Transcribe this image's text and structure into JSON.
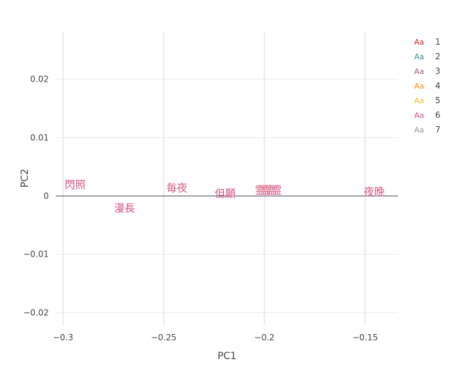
{
  "chart_data": {
    "type": "scatter",
    "xlabel": "PC1",
    "ylabel": "PC2",
    "xlim": [
      -0.3036,
      -0.1336
    ],
    "ylim": [
      -0.0221,
      0.0282
    ],
    "x_ticks": [
      -0.3,
      -0.25,
      -0.2,
      -0.15
    ],
    "x_tick_labels": [
      "−0.3",
      "−0.25",
      "−0.2",
      "−0.15"
    ],
    "y_ticks": [
      -0.02,
      -0.01,
      0,
      0.01,
      0.02
    ],
    "y_tick_labels": [
      "−0.02",
      "−0.01",
      "0",
      "0.01",
      "0.02"
    ],
    "grid": true,
    "legend_position": "right",
    "legend_marker_text": "Aa",
    "series": [
      {
        "name": "1",
        "color": "#d62728",
        "points": []
      },
      {
        "name": "2",
        "color": "#3e8e8e",
        "points": []
      },
      {
        "name": "3",
        "color": "#9b5a8c",
        "points": []
      },
      {
        "name": "4",
        "color": "#ff8c00",
        "points": []
      },
      {
        "name": "5",
        "color": "#e6c229",
        "points": []
      },
      {
        "name": "6",
        "color": "#d4567a",
        "points": [
          {
            "label": "閃照",
            "x": -0.294,
            "y": 0.0019
          },
          {
            "label": "漫長",
            "x": -0.2695,
            "y": -0.0021
          },
          {
            "label": "毎夜",
            "x": -0.2435,
            "y": 0.0014
          },
          {
            "label": "但願",
            "x": -0.2195,
            "y": 0.0004
          },
          {
            "label": "霊霊",
            "x": -0.1995,
            "y": 0.001
          },
          {
            "label": "霊霊",
            "x": -0.1965,
            "y": 0.001
          },
          {
            "label": "夜晩",
            "x": -0.1455,
            "y": 0.0007
          }
        ]
      },
      {
        "name": "7",
        "color": "#999999",
        "points": []
      }
    ]
  }
}
